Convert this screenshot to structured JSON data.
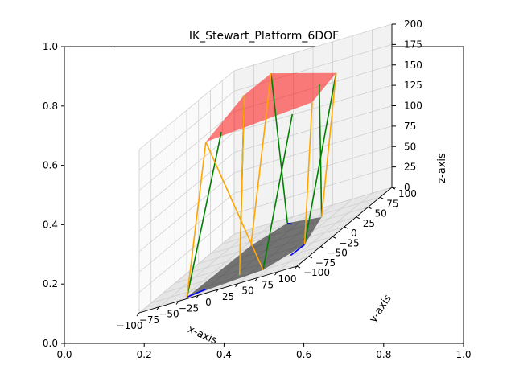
{
  "chart_data": {
    "type": "3d-line",
    "title": "IK_Stewart_Platform_6DOF",
    "outer_axes": {
      "xticks": [
        "0.0",
        "0.2",
        "0.4",
        "0.6",
        "0.8",
        "1.0"
      ],
      "yticks": [
        "0.0",
        "0.2",
        "0.4",
        "0.6",
        "0.8",
        "1.0"
      ]
    },
    "axes3d": {
      "xlabel": "x-axis",
      "ylabel": "y-axis",
      "zlabel": "z-axis",
      "xlim": [
        -100,
        100
      ],
      "ylim": [
        -100,
        100
      ],
      "zlim": [
        0,
        200
      ],
      "xticks": [
        "−100",
        "−75",
        "−50",
        "−25",
        "0",
        "25",
        "50",
        "75",
        "100"
      ],
      "yticks": [
        "−100",
        "−75",
        "−50",
        "−25",
        "0",
        "25",
        "50",
        "75",
        "100"
      ],
      "zticks": [
        "0",
        "25",
        "50",
        "75",
        "100",
        "125",
        "150",
        "175",
        "200"
      ],
      "grid": true
    },
    "base_polygon": {
      "color": "#000000",
      "vertices": [
        [
          -43,
          -94,
          0
        ],
        [
          -39,
          34,
          0
        ],
        [
          -21,
          81,
          0
        ],
        [
          32,
          65,
          0
        ],
        [
          64,
          -24,
          0
        ],
        [
          42,
          -75,
          0
        ]
      ]
    },
    "platform_polygon": {
      "color": "#ff0000",
      "vertices": [
        [
          -45,
          -51,
          170
        ],
        [
          -3,
          -40,
          210
        ],
        [
          -2,
          15,
          210
        ],
        [
          48,
          69,
          170
        ],
        [
          47,
          20,
          158
        ]
      ]
    },
    "leg_series": [
      {
        "color": "#0000ff",
        "segments": [
          [
            [
              -43,
              -94,
              0
            ],
            [
              -25,
              -85,
              0
            ]
          ],
          [
            [
              -21,
              81,
              0
            ],
            [
              -10,
              72,
              0
            ]
          ],
          [
            [
              64,
              -24,
              0
            ],
            [
              62,
              -50,
              0
            ]
          ]
        ]
      },
      {
        "color": "#008000",
        "segments": [
          [
            [
              -43,
              -94,
              0
            ],
            [
              -38,
              -30,
              170
            ]
          ],
          [
            [
              8,
              -68,
              0
            ],
            [
              -3,
              -40,
              210
            ]
          ],
          [
            [
              -21,
              81,
              0
            ],
            [
              -2,
              15,
              210
            ]
          ],
          [
            [
              32,
              65,
              0
            ],
            [
              38,
              50,
              168
            ]
          ],
          [
            [
              64,
              -24,
              0
            ],
            [
              48,
              69,
              170
            ]
          ],
          [
            [
              42,
              -75,
              0
            ],
            [
              40,
              -10,
              160
            ]
          ]
        ]
      },
      {
        "color": "#ffa500",
        "segments": [
          [
            [
              -43,
              -94,
              0
            ],
            [
              -45,
              -51,
              170
            ]
          ],
          [
            [
              8,
              -68,
              0
            ],
            [
              -3,
              -40,
              210
            ]
          ],
          [
            [
              -39,
              34,
              0
            ],
            [
              -2,
              15,
              210
            ]
          ],
          [
            [
              32,
              65,
              0
            ],
            [
              48,
              69,
              170
            ]
          ],
          [
            [
              64,
              -24,
              0
            ],
            [
              47,
              20,
              158
            ]
          ],
          [
            [
              42,
              -75,
              0
            ],
            [
              -45,
              -51,
              170
            ]
          ]
        ]
      }
    ]
  }
}
